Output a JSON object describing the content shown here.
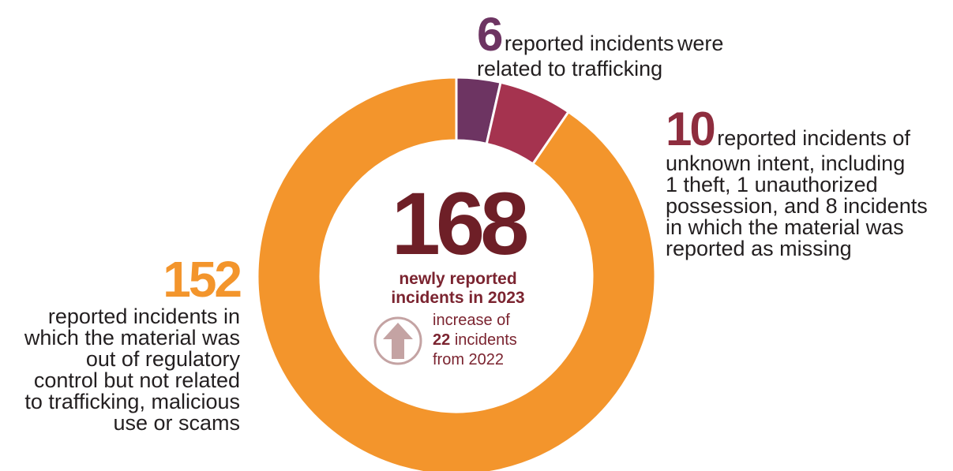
{
  "chart_data": {
    "type": "pie",
    "variant": "donut",
    "total": {
      "value": "168",
      "caption_line1": "newly reported",
      "caption_line2": "incidents in 2023"
    },
    "increase": {
      "prefix": "increase of",
      "amount": "22",
      "unit": "incidents",
      "suffix": "from 2022"
    },
    "slices": [
      {
        "value": 6,
        "color": "#6d3462",
        "number": "6",
        "text_lines": [
          "reported incidents",
          "were related to trafficking"
        ]
      },
      {
        "value": 10,
        "color": "#a5334f",
        "number": "10",
        "text_lines": [
          "reported incidents of",
          "unknown intent, including",
          "1 theft, 1 unauthorized",
          "possession, and 8 incidents",
          "in which the material was",
          "reported as missing"
        ]
      },
      {
        "value": 152,
        "color": "#f3952c",
        "number": "152",
        "text_lines": [
          "reported incidents in",
          "which the material was",
          "out of regulatory",
          "control but not related",
          "to trafficking, malicious",
          "use or scams"
        ]
      }
    ],
    "arrow_color": "#c4a3a3"
  }
}
